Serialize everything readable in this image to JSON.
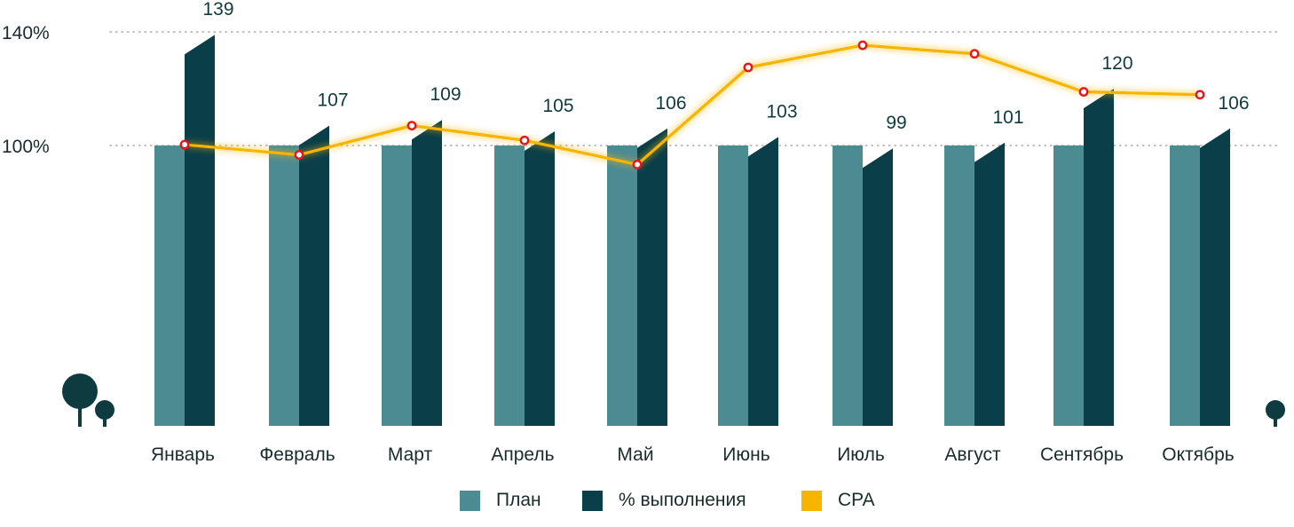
{
  "colors": {
    "plan": "#4d8b93",
    "fulfillment": "#0a3e48",
    "cpa": "#f7b500",
    "cpa_marker": "#e8141e",
    "grid": "#9a9a9a",
    "tree": "#0d3b40"
  },
  "decor": {
    "left_tree_icon": "tree-icon",
    "right_tree_icon": "tree-icon"
  },
  "legend": {
    "items": [
      {
        "label": "План",
        "color": "#4d8b93"
      },
      {
        "label": "% выполнения",
        "color": "#0a3e48"
      },
      {
        "label": "CPA",
        "color": "#f7b500"
      }
    ]
  },
  "chart_data": {
    "type": "bar",
    "categories": [
      "Январь",
      "Февраль",
      "Март",
      "Апрель",
      "Май",
      "Июнь",
      "Июль",
      "Август",
      "Сентябрь",
      "Октябрь"
    ],
    "y_ticks": [
      {
        "value": 100,
        "label": "100%"
      },
      {
        "value": 140,
        "label": "140%"
      }
    ],
    "grid": true,
    "legend_position": "bottom",
    "series": [
      {
        "name": "План",
        "type": "bar",
        "values": [
          100,
          100,
          100,
          100,
          100,
          100,
          100,
          100,
          100,
          100
        ]
      },
      {
        "name": "% выполнения",
        "type": "bar",
        "values": [
          139,
          107,
          109,
          105,
          106,
          103,
          99,
          101,
          120,
          106
        ],
        "data_labels": [
          "139",
          "107",
          "109",
          "105",
          "106",
          "103",
          "99",
          "101",
          "120",
          "106"
        ]
      },
      {
        "name": "CPA",
        "type": "line",
        "values": [
          100.3,
          96.7,
          107.0,
          101.8,
          93.3,
          127.5,
          135.3,
          132.3,
          118.9,
          117.9
        ]
      }
    ]
  }
}
